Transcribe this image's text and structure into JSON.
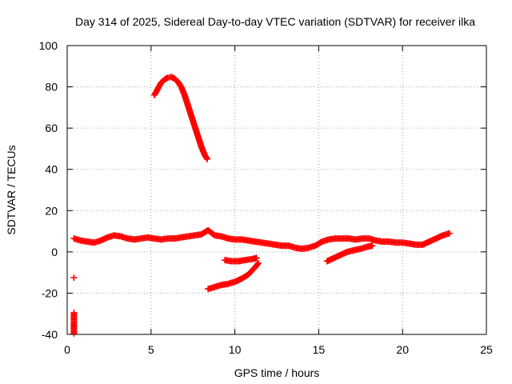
{
  "chart_data": {
    "type": "scatter",
    "title": "Day 314 of 2025, Sidereal Day-to-day VTEC variation (SDTVAR) for receiver ilka",
    "xlabel": "GPS time / hours",
    "ylabel": "SDTVAR / TECUs",
    "xlim": [
      0,
      25
    ],
    "ylim": [
      -40,
      100
    ],
    "xticks": [
      0,
      5,
      10,
      15,
      20,
      25
    ],
    "yticks": [
      -40,
      -20,
      0,
      20,
      40,
      60,
      80,
      100
    ],
    "grid": true,
    "marker": "+",
    "color": "#ff0000",
    "series": [
      {
        "points": [
          [
            0.4,
            6.5
          ],
          [
            0.8,
            5.5
          ],
          [
            1.2,
            5.0
          ],
          [
            1.6,
            4.5
          ],
          [
            2.0,
            5.5
          ],
          [
            2.4,
            7.0
          ],
          [
            2.8,
            8.0
          ],
          [
            3.2,
            7.5
          ],
          [
            3.6,
            6.5
          ],
          [
            4.0,
            6.0
          ],
          [
            4.4,
            6.5
          ],
          [
            4.8,
            7.0
          ],
          [
            5.2,
            6.5
          ],
          [
            5.6,
            6.0
          ],
          [
            6.0,
            6.5
          ],
          [
            6.4,
            6.5
          ],
          [
            6.8,
            7.0
          ],
          [
            7.2,
            7.5
          ],
          [
            7.6,
            8.0
          ],
          [
            8.0,
            8.5
          ],
          [
            8.4,
            10.5
          ],
          [
            8.8,
            8.0
          ],
          [
            9.2,
            7.5
          ],
          [
            9.6,
            6.5
          ],
          [
            10.0,
            6.0
          ],
          [
            10.4,
            6.0
          ],
          [
            10.8,
            5.5
          ],
          [
            11.2,
            5.0
          ],
          [
            11.6,
            4.5
          ],
          [
            12.0,
            4.0
          ],
          [
            12.4,
            3.5
          ],
          [
            12.8,
            3.0
          ],
          [
            13.2,
            3.0
          ],
          [
            13.6,
            2.0
          ],
          [
            14.0,
            1.5
          ],
          [
            14.4,
            2.0
          ],
          [
            14.8,
            3.0
          ],
          [
            15.2,
            5.0
          ],
          [
            15.6,
            6.0
          ],
          [
            16.0,
            6.5
          ],
          [
            16.4,
            6.5
          ],
          [
            16.8,
            6.5
          ],
          [
            17.2,
            6.0
          ],
          [
            17.6,
            6.5
          ],
          [
            18.0,
            6.5
          ],
          [
            18.4,
            5.5
          ],
          [
            18.8,
            5.0
          ],
          [
            19.2,
            5.0
          ],
          [
            19.6,
            4.5
          ],
          [
            20.0,
            4.5
          ],
          [
            20.4,
            4.0
          ],
          [
            20.8,
            3.5
          ],
          [
            21.2,
            3.5
          ],
          [
            21.6,
            5.0
          ],
          [
            22.0,
            6.5
          ],
          [
            22.4,
            8.0
          ],
          [
            22.8,
            9.0
          ]
        ]
      },
      {
        "points": [
          [
            5.2,
            76
          ],
          [
            5.4,
            79
          ],
          [
            5.6,
            82
          ],
          [
            5.8,
            83.5
          ],
          [
            6.0,
            84.5
          ],
          [
            6.2,
            84.8
          ],
          [
            6.4,
            84
          ],
          [
            6.6,
            82.5
          ],
          [
            6.8,
            80
          ],
          [
            7.0,
            76
          ],
          [
            7.2,
            71
          ],
          [
            7.4,
            66
          ],
          [
            7.6,
            61
          ],
          [
            7.8,
            56
          ],
          [
            8.0,
            51
          ],
          [
            8.2,
            47
          ],
          [
            8.35,
            45
          ]
        ]
      },
      {
        "points": [
          [
            8.4,
            -18
          ],
          [
            8.8,
            -17
          ],
          [
            9.2,
            -16
          ],
          [
            9.6,
            -15.5
          ],
          [
            10.0,
            -14.5
          ],
          [
            10.4,
            -13
          ],
          [
            10.8,
            -11
          ],
          [
            11.2,
            -7.5
          ],
          [
            11.4,
            -5.5
          ]
        ]
      },
      {
        "points": [
          [
            9.4,
            -4
          ],
          [
            9.8,
            -4.5
          ],
          [
            10.2,
            -4.5
          ],
          [
            10.6,
            -4
          ],
          [
            11.0,
            -3.5
          ],
          [
            11.3,
            -3
          ]
        ]
      },
      {
        "points": [
          [
            15.5,
            -4.5
          ],
          [
            15.9,
            -3
          ],
          [
            16.3,
            -1.5
          ],
          [
            16.7,
            0
          ],
          [
            17.1,
            0.8
          ],
          [
            17.5,
            1.5
          ],
          [
            17.9,
            2.5
          ],
          [
            18.2,
            3
          ]
        ]
      },
      {
        "points": [
          [
            0.4,
            -12.5
          ],
          [
            0.4,
            -29.5
          ],
          [
            0.4,
            -34
          ],
          [
            0.4,
            -39.5
          ]
        ]
      }
    ]
  }
}
